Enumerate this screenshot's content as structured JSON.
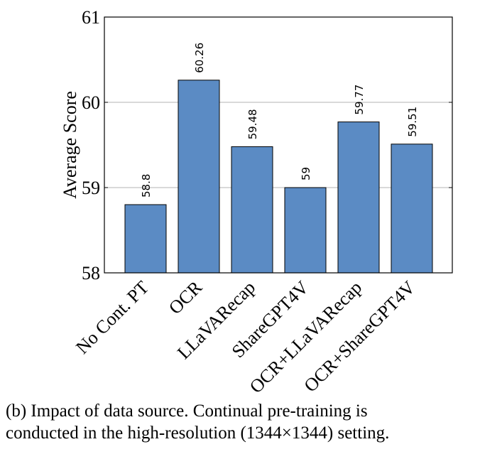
{
  "chart_data": {
    "type": "bar",
    "categories": [
      "No Cont. PT",
      "OCR",
      "LLaVARecap",
      "ShareGPT4V",
      "OCR+LLaVARecap",
      "OCR+ShareGPT4V"
    ],
    "values": [
      58.8,
      60.26,
      59.48,
      59,
      59.77,
      59.51
    ],
    "data_labels": [
      "58.8",
      "60.26",
      "59.48",
      "59",
      "59.77",
      "59.51"
    ],
    "ylabel": "Average Score",
    "xlabel": "",
    "ylim": [
      58,
      61
    ],
    "yticks": [
      "58",
      "59",
      "60",
      "61"
    ],
    "grid": "horizontal",
    "bar_color": "#5b8bc4",
    "bar_edge_color": "#000000"
  },
  "caption": {
    "line1": "(b) Impact of data source.  Continual pre-training is",
    "line2": "conducted in the high-resolution (1344×1344) setting."
  }
}
